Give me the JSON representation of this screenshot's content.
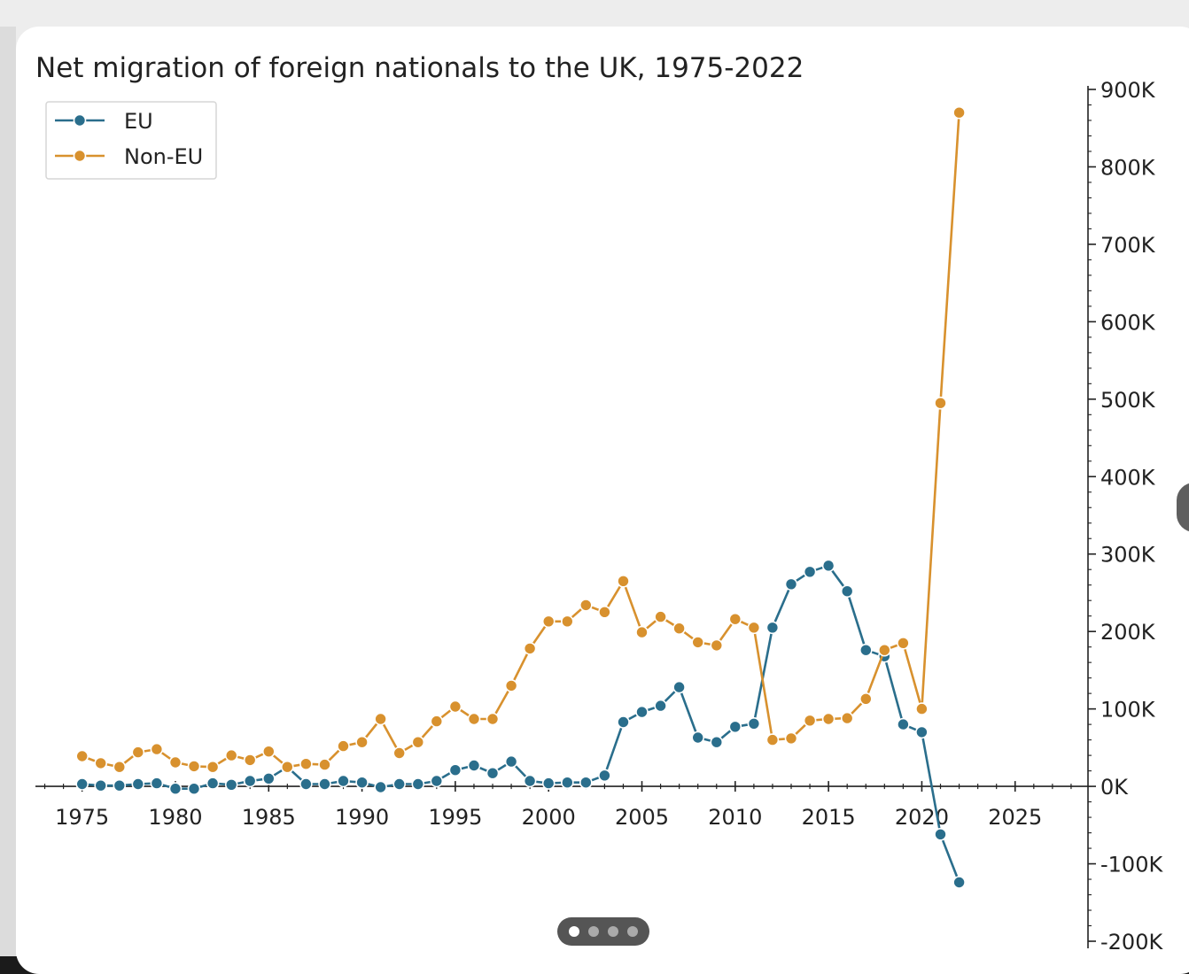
{
  "viewer": {
    "pager": {
      "count": 4,
      "active": 0
    }
  },
  "chart_data": {
    "type": "line",
    "title": "Net migration of foreign nationals to the UK, 1975-2022",
    "xlabel": "",
    "ylabel": "",
    "xlim": [
      1972.5,
      2029
    ],
    "ylim": [
      -200000,
      900000
    ],
    "x_ticks": [
      1975,
      1980,
      1985,
      1990,
      1995,
      2000,
      2005,
      2010,
      2015,
      2020,
      2025
    ],
    "x_tick_labels": [
      "1975",
      "1980",
      "1985",
      "1990",
      "1995",
      "2000",
      "2005",
      "2010",
      "2015",
      "2020",
      "2025"
    ],
    "y_ticks": [
      -200000,
      -100000,
      0,
      100000,
      200000,
      300000,
      400000,
      500000,
      600000,
      700000,
      800000,
      900000
    ],
    "y_tick_labels": [
      "-200K",
      "-100K",
      "0K",
      "100K",
      "200K",
      "300K",
      "400K",
      "500K",
      "600K",
      "700K",
      "800K",
      "900K"
    ],
    "y_axis_side": "right",
    "grid": false,
    "legend": {
      "position": "top-left"
    },
    "colors": {
      "EU": "#2a6e8c",
      "Non-EU": "#d8912e"
    },
    "x": [
      1975,
      1976,
      1977,
      1978,
      1979,
      1980,
      1981,
      1982,
      1983,
      1984,
      1985,
      1986,
      1987,
      1988,
      1989,
      1990,
      1991,
      1992,
      1993,
      1994,
      1995,
      1996,
      1997,
      1998,
      1999,
      2000,
      2001,
      2002,
      2003,
      2004,
      2005,
      2006,
      2007,
      2008,
      2009,
      2010,
      2011,
      2012,
      2013,
      2014,
      2015,
      2016,
      2017,
      2018,
      2019,
      2020,
      2021,
      2022
    ],
    "series": [
      {
        "name": "EU",
        "values": [
          3000,
          1000,
          1000,
          3000,
          4000,
          -3000,
          -3000,
          4000,
          2000,
          7000,
          10000,
          25000,
          3000,
          3000,
          7000,
          5000,
          -1000,
          3000,
          3000,
          7000,
          21000,
          27000,
          17000,
          32000,
          7000,
          4000,
          5000,
          5000,
          14000,
          83000,
          96000,
          104000,
          128000,
          63000,
          57000,
          77000,
          81000,
          205000,
          261000,
          277000,
          285000,
          252000,
          176000,
          168000,
          80000,
          70000,
          -62000,
          -124000
        ]
      },
      {
        "name": "Non-EU",
        "values": [
          39000,
          30000,
          25000,
          44000,
          48000,
          31000,
          26000,
          25000,
          40000,
          34000,
          45000,
          25000,
          29000,
          28000,
          52000,
          57000,
          87000,
          43000,
          57000,
          84000,
          103000,
          87000,
          87000,
          130000,
          178000,
          213000,
          213000,
          234000,
          225000,
          265000,
          199000,
          219000,
          204000,
          186000,
          182000,
          216000,
          205000,
          60000,
          62000,
          85000,
          87000,
          88000,
          113000,
          176000,
          185000,
          100000,
          495000,
          870000
        ]
      }
    ]
  }
}
